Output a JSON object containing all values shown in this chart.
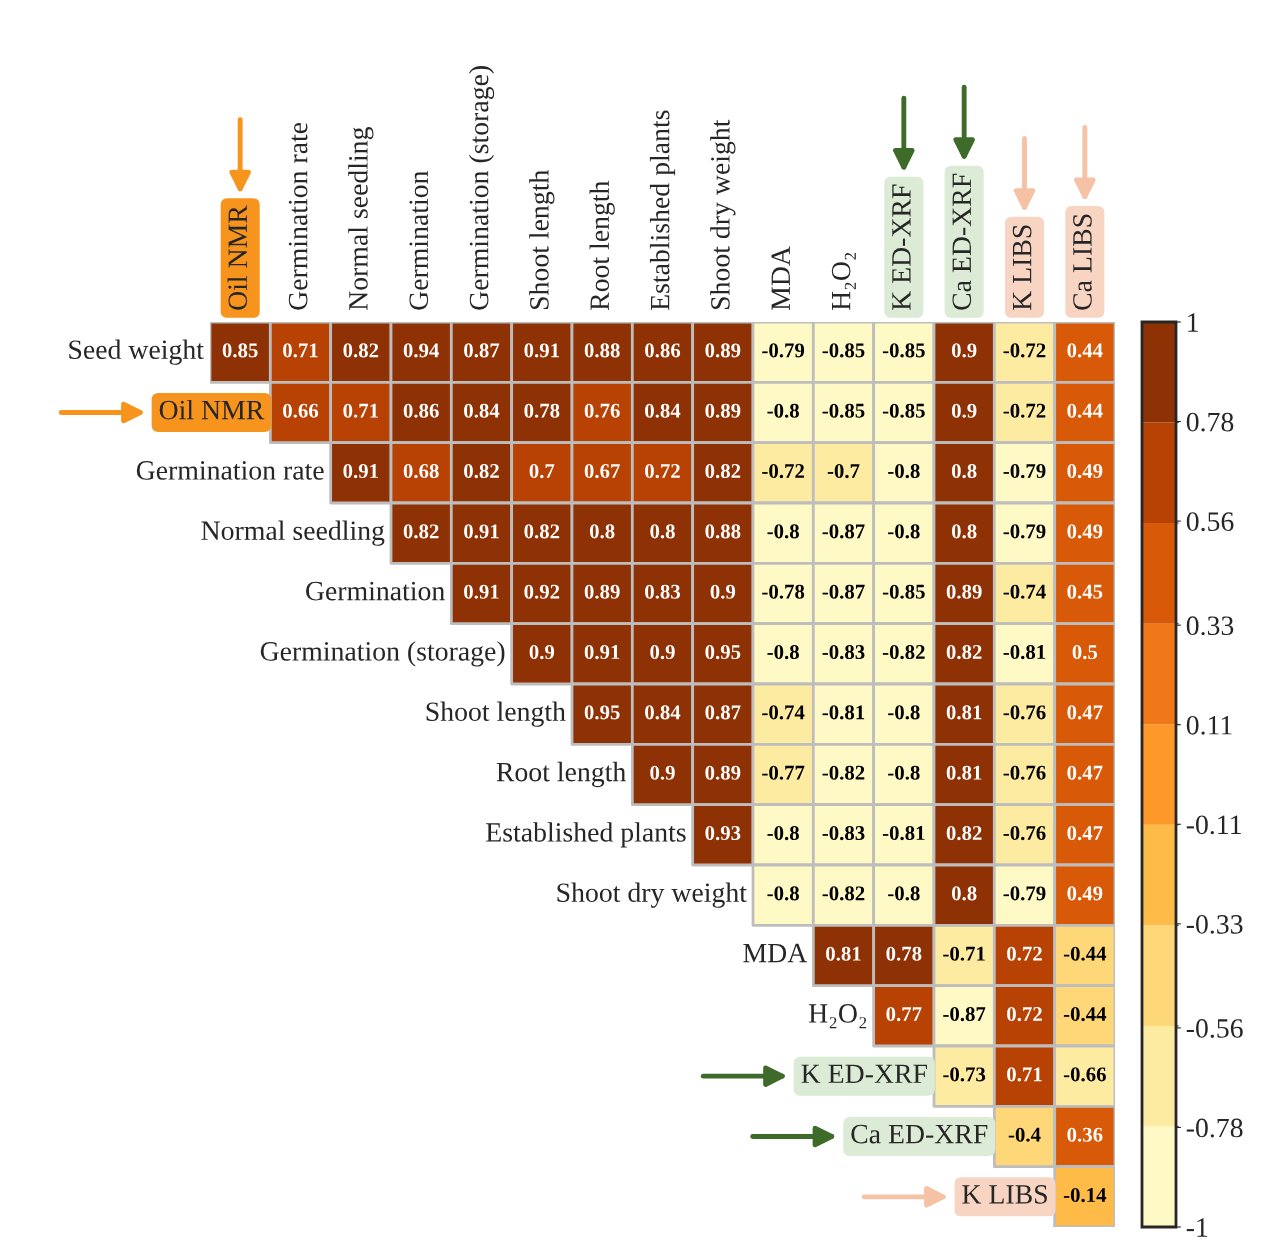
{
  "chart_data": {
    "type": "heatmap",
    "categories": [
      "Oil NMR",
      "Germination rate",
      "Normal seedling",
      "Germination",
      "Germination (storage)",
      "Shoot length",
      "Root length",
      "Established plants",
      "Shoot dry weight",
      "MDA",
      "H₂O₂",
      "K ED-XRF",
      "Ca ED-XRF",
      "K LIBS",
      "Ca LIBS"
    ],
    "y_categories": [
      "Seed weight",
      "Oil NMR",
      "Germination rate",
      "Normal seedling",
      "Germination",
      "Germination (storage)",
      "Shoot length",
      "Root length",
      "Established plants",
      "Shoot dry weight",
      "MDA",
      "H₂O₂",
      "K ED-XRF",
      "Ca ED-XRF",
      "K LIBS"
    ],
    "cells": [
      [
        0.85,
        0.71,
        0.82,
        0.94,
        0.87,
        0.91,
        0.88,
        0.86,
        0.89,
        -0.79,
        -0.85,
        -0.85,
        0.9,
        -0.72,
        0.44
      ],
      [
        null,
        0.66,
        0.71,
        0.86,
        0.84,
        0.78,
        0.76,
        0.84,
        0.89,
        -0.8,
        -0.85,
        -0.85,
        0.9,
        -0.72,
        0.44
      ],
      [
        null,
        null,
        0.91,
        0.68,
        0.82,
        0.7,
        0.67,
        0.72,
        0.82,
        -0.72,
        -0.7,
        -0.8,
        0.8,
        -0.79,
        0.49
      ],
      [
        null,
        null,
        null,
        0.82,
        0.91,
        0.82,
        0.8,
        0.8,
        0.88,
        -0.8,
        -0.87,
        -0.8,
        0.8,
        -0.79,
        0.49
      ],
      [
        null,
        null,
        null,
        null,
        0.91,
        0.92,
        0.89,
        0.83,
        0.9,
        -0.78,
        -0.87,
        -0.85,
        0.89,
        -0.74,
        0.45
      ],
      [
        null,
        null,
        null,
        null,
        null,
        0.9,
        0.91,
        0.9,
        0.95,
        -0.8,
        -0.83,
        -0.82,
        0.82,
        -0.81,
        0.5
      ],
      [
        null,
        null,
        null,
        null,
        null,
        null,
        0.95,
        0.84,
        0.87,
        -0.74,
        -0.81,
        -0.8,
        0.81,
        -0.76,
        0.47
      ],
      [
        null,
        null,
        null,
        null,
        null,
        null,
        null,
        0.9,
        0.89,
        -0.77,
        -0.82,
        -0.8,
        0.81,
        -0.76,
        0.47
      ],
      [
        null,
        null,
        null,
        null,
        null,
        null,
        null,
        null,
        0.93,
        -0.8,
        -0.83,
        -0.81,
        0.82,
        -0.76,
        0.47
      ],
      [
        null,
        null,
        null,
        null,
        null,
        null,
        null,
        null,
        null,
        -0.8,
        -0.82,
        -0.8,
        0.8,
        -0.79,
        0.49
      ],
      [
        null,
        null,
        null,
        null,
        null,
        null,
        null,
        null,
        null,
        null,
        0.81,
        0.78,
        -0.71,
        0.72,
        -0.44
      ],
      [
        null,
        null,
        null,
        null,
        null,
        null,
        null,
        null,
        null,
        null,
        null,
        0.77,
        -0.87,
        0.72,
        -0.44
      ],
      [
        null,
        null,
        null,
        null,
        null,
        null,
        null,
        null,
        null,
        null,
        null,
        null,
        -0.73,
        0.71,
        -0.66
      ],
      [
        null,
        null,
        null,
        null,
        null,
        null,
        null,
        null,
        null,
        null,
        null,
        null,
        null,
        -0.4,
        0.36
      ],
      [
        null,
        null,
        null,
        null,
        null,
        null,
        null,
        null,
        null,
        null,
        null,
        null,
        null,
        null,
        -0.14
      ]
    ],
    "data_labels": true,
    "clim": [
      -1,
      1
    ],
    "cticks": [
      -1,
      -0.78,
      -0.56,
      -0.33,
      -0.11,
      0.11,
      0.33,
      0.56,
      0.78,
      1
    ]
  }
}
